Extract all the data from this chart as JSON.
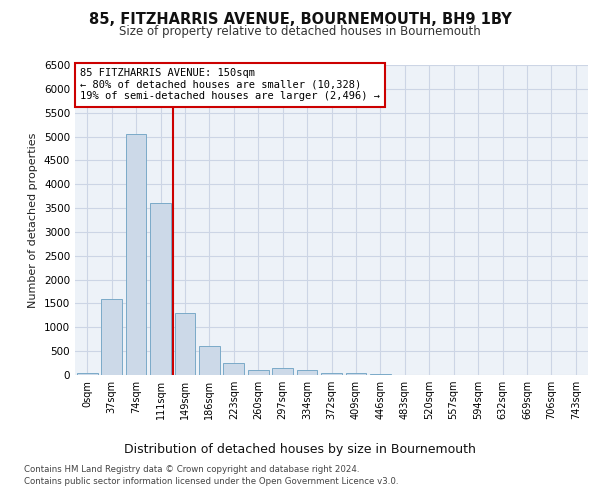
{
  "title": "85, FITZHARRIS AVENUE, BOURNEMOUTH, BH9 1BY",
  "subtitle": "Size of property relative to detached houses in Bournemouth",
  "xlabel": "Distribution of detached houses by size in Bournemouth",
  "ylabel": "Number of detached properties",
  "bar_labels": [
    "0sqm",
    "37sqm",
    "74sqm",
    "111sqm",
    "149sqm",
    "186sqm",
    "223sqm",
    "260sqm",
    "297sqm",
    "334sqm",
    "372sqm",
    "409sqm",
    "446sqm",
    "483sqm",
    "520sqm",
    "557sqm",
    "594sqm",
    "632sqm",
    "669sqm",
    "706sqm",
    "743sqm"
  ],
  "bar_values": [
    50,
    1600,
    5050,
    3600,
    1300,
    600,
    250,
    100,
    150,
    100,
    50,
    50,
    30,
    0,
    0,
    0,
    0,
    0,
    0,
    0,
    0
  ],
  "bar_color": "#ccd9e8",
  "bar_edge_color": "#7aaac8",
  "property_line_color": "#cc0000",
  "annotation_line1": "85 FITZHARRIS AVENUE: 150sqm",
  "annotation_line2": "← 80% of detached houses are smaller (10,328)",
  "annotation_line3": "19% of semi-detached houses are larger (2,496) →",
  "ann_box_edge_color": "#cc0000",
  "ylim_max": 6500,
  "ytick_step": 500,
  "grid_color": "#ccd5e5",
  "bg_color": "#edf2f8",
  "footer1": "Contains HM Land Registry data © Crown copyright and database right 2024.",
  "footer2": "Contains public sector information licensed under the Open Government Licence v3.0."
}
